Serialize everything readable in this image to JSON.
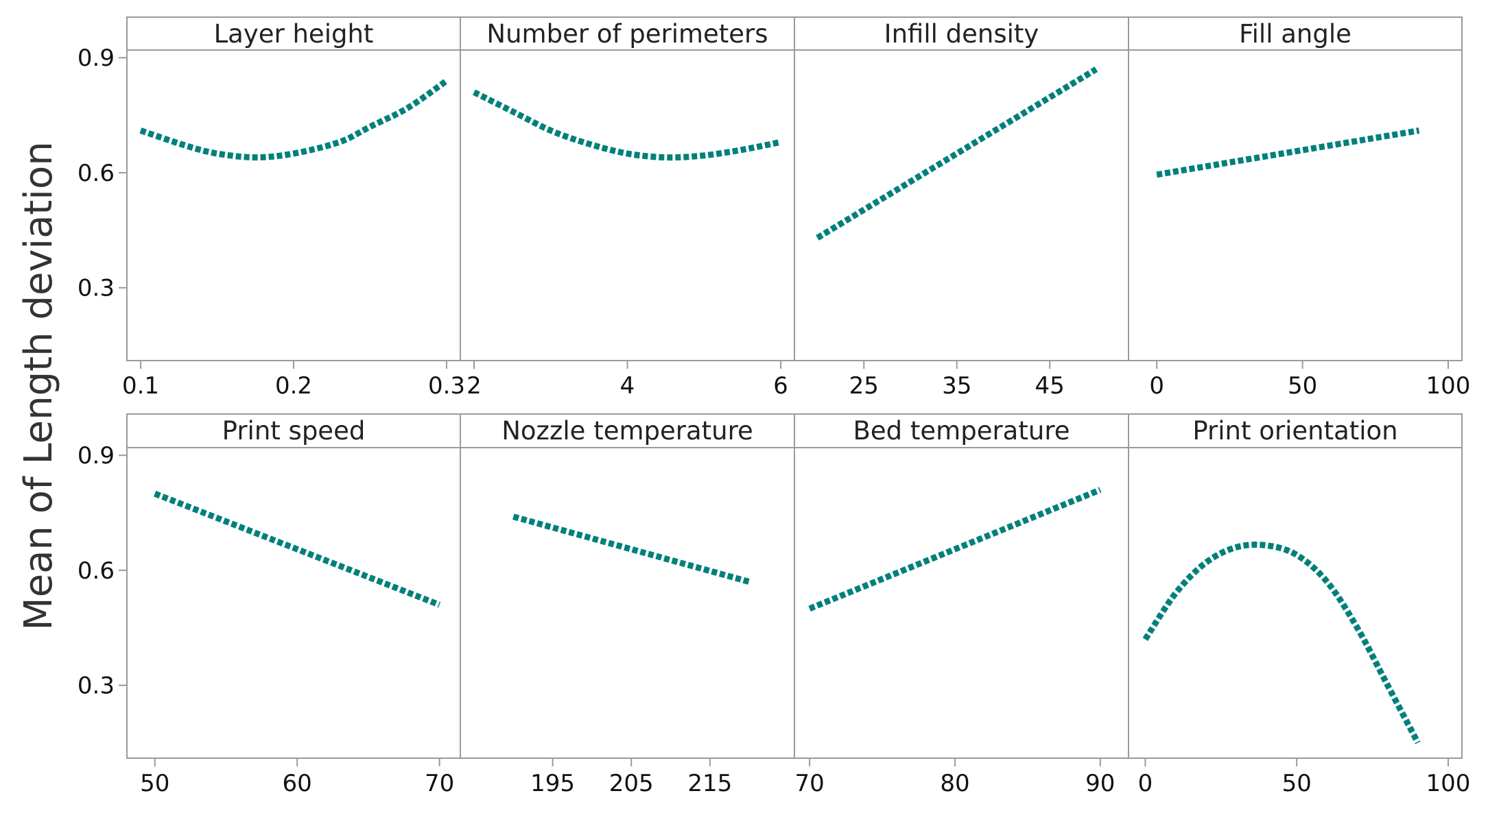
{
  "chart_data": {
    "type": "line",
    "ylabel": "Mean of Length deviation",
    "ylim": [
      0.11,
      0.92
    ],
    "y_ticks": [
      0.3,
      0.6,
      0.9
    ],
    "y_tick_labels": [
      "0.3",
      "0.6",
      "0.9"
    ],
    "line_color": "#00807a",
    "line_style": "dotted",
    "grid": false,
    "panels": [
      {
        "title": "Layer height",
        "xlim": [
          0.1,
          0.3
        ],
        "x_ticks": [
          0.1,
          0.2,
          0.3
        ],
        "x_tick_labels": [
          "0.1",
          "0.2",
          "0.3"
        ],
        "series": [
          {
            "x": [
              0.1,
              0.13,
              0.15,
              0.175,
              0.2,
              0.23,
              0.25,
              0.275,
              0.3
            ],
            "y": [
              0.71,
              0.67,
              0.65,
              0.64,
              0.65,
              0.68,
              0.72,
              0.77,
              0.84
            ]
          }
        ]
      },
      {
        "title": "Number of perimeters",
        "xlim": [
          2,
          6
        ],
        "x_ticks": [
          2,
          4,
          6
        ],
        "x_tick_labels": [
          "2",
          "4",
          "6"
        ],
        "series": [
          {
            "x": [
              2,
              2.5,
              3,
              3.5,
              4,
              4.5,
              5,
              5.5,
              6
            ],
            "y": [
              0.81,
              0.76,
              0.71,
              0.675,
              0.65,
              0.64,
              0.645,
              0.66,
              0.68
            ]
          }
        ]
      },
      {
        "title": "Infill density",
        "xlim": [
          19,
          52
        ],
        "x_ticks": [
          25,
          35,
          45
        ],
        "x_tick_labels": [
          "25",
          "35",
          "45"
        ],
        "series": [
          {
            "x": [
              20,
              50
            ],
            "y": [
              0.43,
              0.87
            ]
          }
        ]
      },
      {
        "title": "Fill angle",
        "xlim": [
          -5,
          100
        ],
        "x_ticks": [
          0,
          50,
          100
        ],
        "x_tick_labels": [
          "0",
          "50",
          "100"
        ],
        "series": [
          {
            "x": [
              0,
              90
            ],
            "y": [
              0.595,
              0.71
            ]
          }
        ]
      },
      {
        "title": "Print speed",
        "xlim": [
          49,
          70.5
        ],
        "x_ticks": [
          50,
          60,
          70
        ],
        "x_tick_labels": [
          "50",
          "60",
          "70"
        ],
        "series": [
          {
            "x": [
              50,
              70
            ],
            "y": [
              0.8,
              0.51
            ]
          }
        ]
      },
      {
        "title": "Nozzle temperature",
        "xlim": [
          185,
          224
        ],
        "x_ticks": [
          195,
          205,
          215
        ],
        "x_tick_labels": [
          "195",
          "205",
          "215"
        ],
        "series": [
          {
            "x": [
              190,
              220
            ],
            "y": [
              0.74,
              0.57
            ]
          }
        ]
      },
      {
        "title": "Bed temperature",
        "xlim": [
          69.9,
          91
        ],
        "x_ticks": [
          70,
          80,
          90
        ],
        "x_tick_labels": [
          "70",
          "80",
          "90"
        ],
        "series": [
          {
            "x": [
              70,
              90
            ],
            "y": [
              0.5,
              0.81
            ]
          }
        ]
      },
      {
        "title": "Print orientation",
        "xlim": [
          -1,
          100
        ],
        "x_ticks": [
          0,
          50,
          100
        ],
        "x_tick_labels": [
          "0",
          "50",
          "100"
        ],
        "series": [
          {
            "x": [
              0,
              10,
              20,
              30,
              40,
              50,
              60,
              70,
              80,
              90
            ],
            "y": [
              0.42,
              0.54,
              0.62,
              0.66,
              0.665,
              0.64,
              0.57,
              0.45,
              0.3,
              0.15
            ]
          }
        ]
      }
    ]
  }
}
